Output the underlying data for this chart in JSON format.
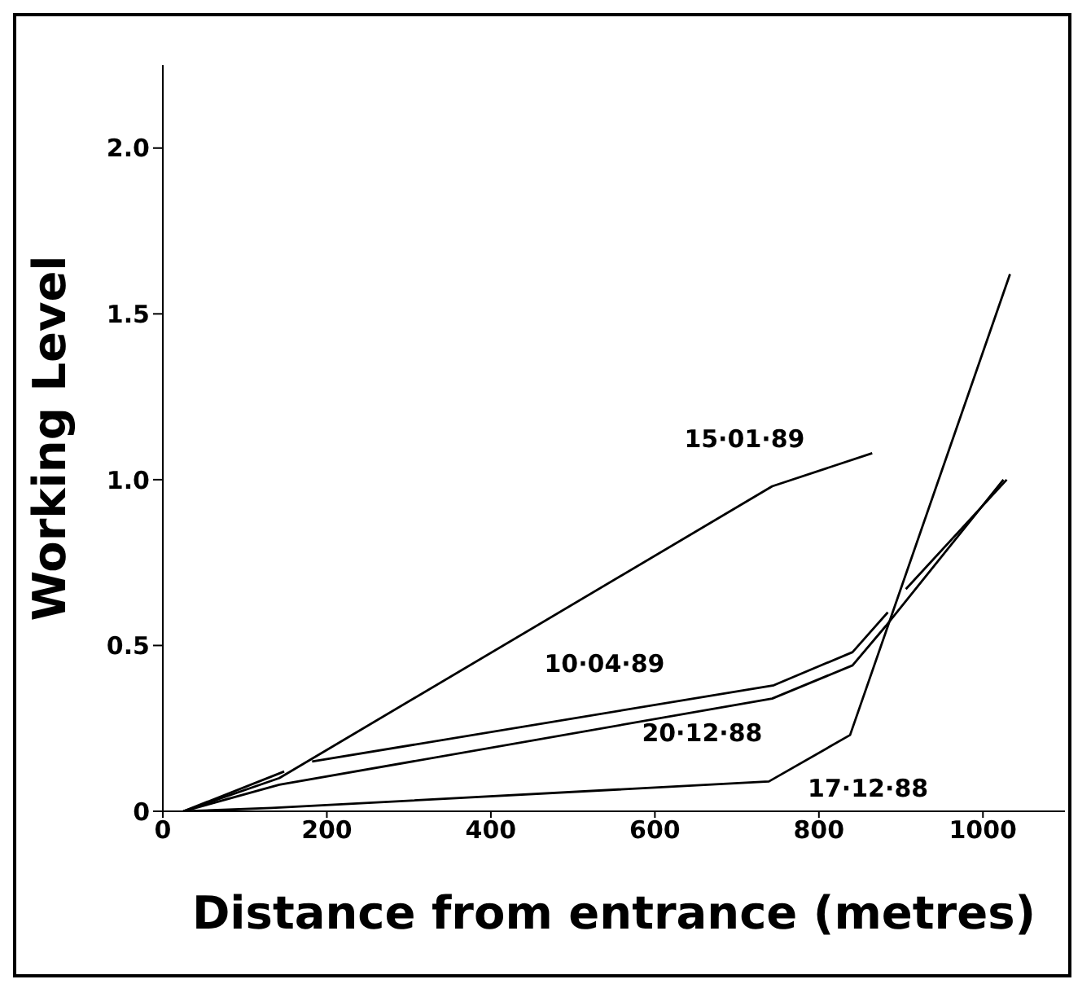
{
  "chart_data": {
    "type": "line",
    "xlabel": "Distance from entrance (metres)",
    "ylabel": "Working Level",
    "xlim": [
      0,
      1100
    ],
    "xticks": [
      0,
      200,
      400,
      600,
      800,
      1000
    ],
    "ylim": [
      0,
      2.25
    ],
    "yticks": [
      0,
      {
        "value": 0.5,
        "label": "0.5"
      },
      {
        "value": 1,
        "label": "1.0"
      },
      {
        "value": 1.5,
        "label": "1.5"
      },
      {
        "value": 2,
        "label": "2.0"
      }
    ],
    "grid": false,
    "legend": false,
    "marker": "none",
    "line_style": "solid",
    "series": [
      {
        "name": "15·01·89",
        "color": "#000000",
        "x": [
          25,
          142,
          743,
          865
        ],
        "values": [
          0,
          0.1,
          0.98,
          1.08
        ]
      },
      {
        "name": "10·04·89",
        "color": "#000000",
        "x": [
          25,
          148,
          165,
          182,
          745,
          841,
          884,
          895,
          906,
          1029
        ],
        "values": [
          0,
          0.12,
          null,
          0.15,
          0.38,
          0.48,
          0.6,
          null,
          0.67,
          1.0
        ]
      },
      {
        "name": "20·12·88",
        "color": "#000000",
        "x": [
          25,
          142,
          743,
          841,
          882,
          1025
        ],
        "values": [
          0,
          0.08,
          0.34,
          0.44,
          0.56,
          1.0
        ]
      },
      {
        "name": "17·12·88",
        "color": "#000000",
        "x": [
          25,
          133,
          739,
          838,
          1033
        ],
        "values": [
          0,
          0.01,
          0.09,
          0.23,
          1.62
        ]
      }
    ]
  }
}
